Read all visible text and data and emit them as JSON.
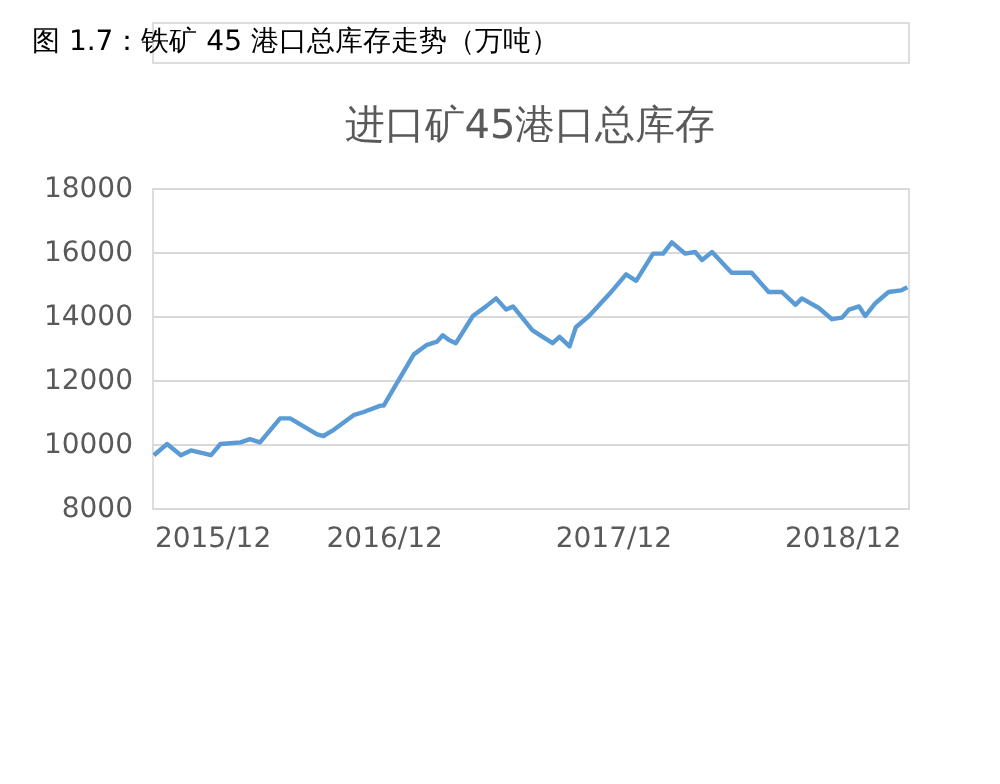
{
  "chart_data": {
    "type": "line",
    "title": "图 1.7：铁矿 45 港口总库存走势（万吨）",
    "subtitle": "进口矿45港口总库存",
    "x": [
      "2015-12-01",
      "2015-12-22",
      "2016-01-13",
      "2016-01-29",
      "2016-03-01",
      "2016-03-16",
      "2016-04-17",
      "2016-05-02",
      "2016-05-18",
      "2016-06-19",
      "2016-07-05",
      "2016-08-17",
      "2016-08-27",
      "2016-09-13",
      "2016-10-14",
      "2016-10-30",
      "2016-11-26",
      "2016-12-01",
      "2016-12-22",
      "2017-01-18",
      "2017-02-08",
      "2017-02-24",
      "2017-03-05",
      "2017-03-15",
      "2017-03-26",
      "2017-04-22",
      "2017-05-13",
      "2017-05-29",
      "2017-06-14",
      "2017-06-25",
      "2017-07-26",
      "2017-08-27",
      "2017-09-07",
      "2017-09-23",
      "2017-10-03",
      "2017-10-24",
      "2017-11-26",
      "2017-12-22",
      "2018-01-07",
      "2018-02-03",
      "2018-02-19",
      "2018-03-05",
      "2018-03-26",
      "2018-04-11",
      "2018-04-22",
      "2018-05-08",
      "2018-06-08",
      "2018-07-10",
      "2018-08-06",
      "2018-08-27",
      "2018-09-18",
      "2018-09-28",
      "2018-10-25",
      "2018-11-15",
      "2018-12-01",
      "2018-12-12",
      "2018-12-28",
      "2019-01-07",
      "2019-01-23",
      "2019-02-13",
      "2019-03-05",
      "2019-03-15"
    ],
    "series": [
      {
        "color": "#5b9bd5",
        "values": [
          9650,
          10000,
          9650,
          9800,
          9650,
          10000,
          10050,
          10150,
          10050,
          10800,
          10800,
          10300,
          10250,
          10450,
          10900,
          11000,
          11200,
          11200,
          11900,
          12800,
          13100,
          13200,
          13400,
          13250,
          13150,
          14000,
          14300,
          14550,
          14200,
          14300,
          13550,
          13150,
          13350,
          13050,
          13650,
          14000,
          14700,
          15300,
          15100,
          15950,
          15950,
          16300,
          15950,
          16000,
          15750,
          16000,
          15350,
          15350,
          14750,
          14750,
          14350,
          14550,
          14250,
          13900,
          13950,
          14200,
          14300,
          14000,
          14400,
          14750,
          14800,
          14900
        ]
      }
    ],
    "xlim": [
      "2015-11-28",
      "2019-03-16"
    ],
    "xticks": [
      {
        "value": "2015-12-01",
        "label": "2015/12"
      },
      {
        "value": "2016-12-01",
        "label": "2016/12"
      },
      {
        "value": "2017-12-01",
        "label": "2017/12"
      },
      {
        "value": "2018-12-01",
        "label": "2018/12"
      }
    ],
    "ylim": [
      8000,
      18000
    ],
    "yticks": [
      8000,
      10000,
      12000,
      14000,
      16000,
      18000
    ],
    "grid": "y",
    "marker": "none",
    "line_style": "solid"
  }
}
